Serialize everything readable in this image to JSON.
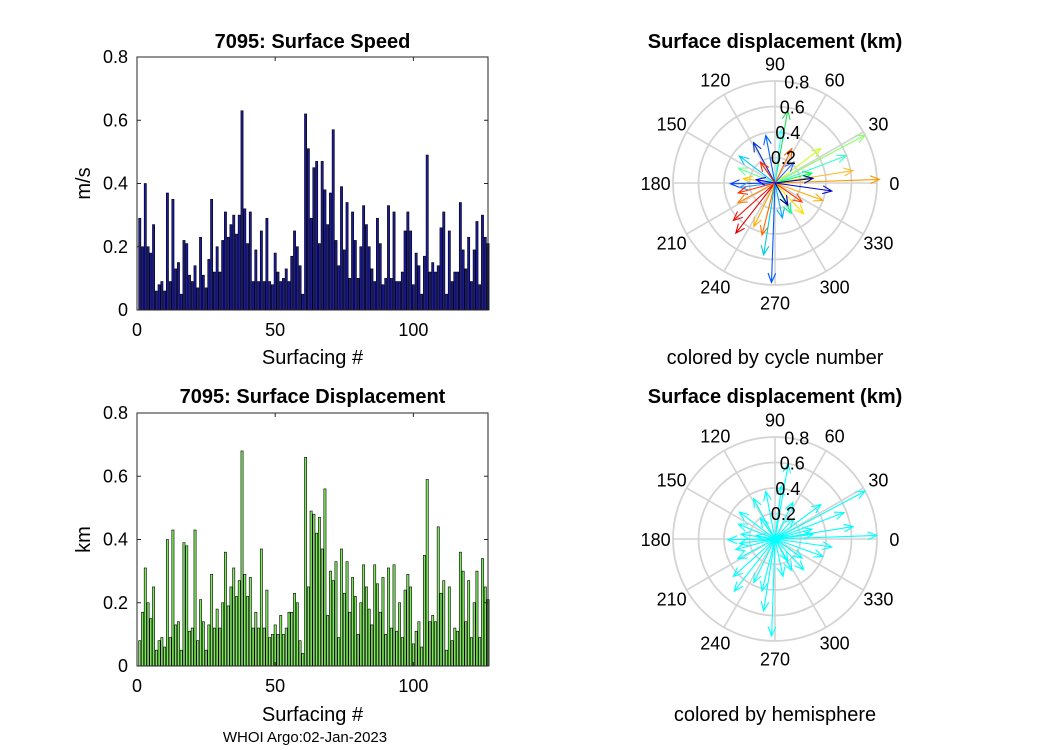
{
  "footer_text": "WHOI Argo:02-Jan-2023",
  "chart_data": [
    {
      "type": "bar",
      "title": "7095: Surface Speed",
      "xlabel": "Surfacing #",
      "ylabel": "m/s",
      "xlim": [
        0,
        127
      ],
      "ylim": [
        0,
        0.8
      ],
      "xticks": [
        0,
        50,
        100
      ],
      "yticks": [
        0,
        0.2,
        0.4,
        0.6,
        0.8
      ],
      "xtick_labels": [
        "0",
        "50",
        "100"
      ],
      "ytick_labels": [
        "0",
        "0.2",
        "0.4",
        "0.6",
        "0.8"
      ],
      "bar_fill": "#1b1b9c",
      "bar_edge": "#000000",
      "values": [
        0.29,
        0.2,
        0.4,
        0.2,
        0.18,
        0.27,
        0.06,
        0.08,
        0.09,
        0.06,
        0.37,
        0.09,
        0.35,
        0.13,
        0.15,
        0.05,
        0.22,
        0.21,
        0.11,
        0.09,
        0.14,
        0.07,
        0.23,
        0.11,
        0.07,
        0.16,
        0.35,
        0.12,
        0.2,
        0.12,
        0.22,
        0.31,
        0.23,
        0.27,
        0.3,
        0.24,
        0.3,
        0.63,
        0.32,
        0.21,
        0.31,
        0.09,
        0.19,
        0.09,
        0.25,
        0.09,
        0.29,
        0.09,
        0.08,
        0.18,
        0.12,
        0.09,
        0.1,
        0.13,
        0.09,
        0.17,
        0.25,
        0.2,
        0.14,
        0.05,
        0.62,
        0.51,
        0.29,
        0.45,
        0.47,
        0.21,
        0.47,
        0.38,
        0.27,
        0.37,
        0.57,
        0.22,
        0.14,
        0.39,
        0.19,
        0.34,
        0.1,
        0.31,
        0.22,
        0.1,
        0.2,
        0.33,
        0.27,
        0.2,
        0.13,
        0.09,
        0.29,
        0.21,
        0.08,
        0.1,
        0.33,
        0.1,
        0.31,
        0.09,
        0.09,
        0.12,
        0.25,
        0.31,
        0.25,
        0.08,
        0.18,
        0.14,
        0.05,
        0.17,
        0.49,
        0.12,
        0.15,
        0.12,
        0.14,
        0.26,
        0.31,
        0.05,
        0.25,
        0.09,
        0.12,
        0.12,
        0.34,
        0.19,
        0.13,
        0.23,
        0.09,
        0.19,
        0.28,
        0.08,
        0.3,
        0.23,
        0.21
      ]
    },
    {
      "type": "bar",
      "title": "7095: Surface Displacement",
      "xlabel": "Surfacing #",
      "ylabel": "km",
      "xlim": [
        0,
        127
      ],
      "ylim": [
        0,
        0.8
      ],
      "xticks": [
        0,
        50,
        100
      ],
      "yticks": [
        0,
        0.2,
        0.4,
        0.6,
        0.8
      ],
      "xtick_labels": [
        "0",
        "50",
        "100"
      ],
      "ytick_labels": [
        "0",
        "0.2",
        "0.4",
        "0.6",
        "0.8"
      ],
      "bar_fill": "#7ee85e",
      "bar_edge": "#000000",
      "values": [
        0.08,
        0.17,
        0.31,
        0.2,
        0.15,
        0.25,
        0.05,
        0.08,
        0.09,
        0.06,
        0.4,
        0.09,
        0.43,
        0.13,
        0.14,
        0.05,
        0.39,
        0.38,
        0.11,
        0.12,
        0.43,
        0.08,
        0.21,
        0.14,
        0.05,
        0.13,
        0.29,
        0.12,
        0.18,
        0.12,
        0.2,
        0.36,
        0.19,
        0.25,
        0.31,
        0.22,
        0.27,
        0.68,
        0.29,
        0.22,
        0.28,
        0.12,
        0.17,
        0.12,
        0.37,
        0.12,
        0.24,
        0.09,
        0.1,
        0.13,
        0.1,
        0.16,
        0.1,
        0.12,
        0.17,
        0.17,
        0.23,
        0.2,
        0.08,
        0.04,
        0.66,
        0.25,
        0.49,
        0.48,
        0.42,
        0.47,
        0.37,
        0.56,
        0.16,
        0.3,
        0.27,
        0.33,
        0.09,
        0.37,
        0.23,
        0.33,
        0.17,
        0.28,
        0.22,
        0.1,
        0.2,
        0.32,
        0.25,
        0.18,
        0.13,
        0.32,
        0.26,
        0.17,
        0.28,
        0.1,
        0.31,
        0.12,
        0.32,
        0.11,
        0.2,
        0.09,
        0.24,
        0.29,
        0.25,
        0.07,
        0.11,
        0.14,
        0.06,
        0.35,
        0.59,
        0.14,
        0.16,
        0.14,
        0.44,
        0.23,
        0.27,
        0.05,
        0.25,
        0.08,
        0.12,
        0.11,
        0.36,
        0.3,
        0.14,
        0.27,
        0.09,
        0.2,
        0.3,
        0.09,
        0.34,
        0.25,
        0.21
      ]
    },
    {
      "type": "polar",
      "subtype": "compass",
      "title": "Surface displacement (km)",
      "caption": "colored by cycle number",
      "rlim": [
        0,
        0.8
      ],
      "rticks": [
        0.2,
        0.4,
        0.6,
        0.8
      ],
      "rtick_labels": [
        "0.2",
        "0.4",
        "0.6",
        "0.8"
      ],
      "angle_ticks": [
        0,
        30,
        60,
        90,
        120,
        150,
        180,
        210,
        240,
        270,
        300,
        330
      ],
      "angle_labels": [
        "0",
        "30",
        "60",
        "90",
        "120",
        "150",
        "180",
        "210",
        "240",
        "270",
        "300",
        "330"
      ],
      "arrows": [
        {
          "angle": 2,
          "r": 0.82,
          "color": "#ff9900"
        },
        {
          "angle": 9,
          "r": 0.62,
          "color": "#ffbb33"
        },
        {
          "angle": 28,
          "r": 0.8,
          "color": "#88ff66"
        },
        {
          "angle": 21,
          "r": 0.6,
          "color": "#33ffcc"
        },
        {
          "angle": 37,
          "r": 0.45,
          "color": "#ccff33"
        },
        {
          "angle": 80,
          "r": 0.58,
          "color": "#22dd55"
        },
        {
          "angle": 83,
          "r": 0.42,
          "color": "#33ffff"
        },
        {
          "angle": 64,
          "r": 0.3,
          "color": "#ff6600"
        },
        {
          "angle": 101,
          "r": 0.38,
          "color": "#0066ff"
        },
        {
          "angle": 118,
          "r": 0.36,
          "color": "#0033cc"
        },
        {
          "angle": 143,
          "r": 0.35,
          "color": "#00ccff"
        },
        {
          "angle": 158,
          "r": 0.31,
          "color": "#66ff99"
        },
        {
          "angle": 172,
          "r": 0.25,
          "color": "#ffcc00"
        },
        {
          "angle": 181,
          "r": 0.35,
          "color": "#0044ff"
        },
        {
          "angle": 187,
          "r": 0.28,
          "color": "#3399ff"
        },
        {
          "angle": 195,
          "r": 0.3,
          "color": "#ff3300"
        },
        {
          "angle": 208,
          "r": 0.33,
          "color": "#ff8800"
        },
        {
          "angle": 222,
          "r": 0.44,
          "color": "#ee1111"
        },
        {
          "angle": 232,
          "r": 0.5,
          "color": "#dd0000"
        },
        {
          "angle": 244,
          "r": 0.38,
          "color": "#ffaa00"
        },
        {
          "angle": 256,
          "r": 0.42,
          "color": "#ff6600"
        },
        {
          "angle": 261,
          "r": 0.57,
          "color": "#00ccdd"
        },
        {
          "angle": 268,
          "r": 0.78,
          "color": "#0055ff"
        },
        {
          "angle": 282,
          "r": 0.28,
          "color": "#00aaff"
        },
        {
          "angle": 298,
          "r": 0.27,
          "color": "#00ff88"
        },
        {
          "angle": 313,
          "r": 0.33,
          "color": "#ffdd00"
        },
        {
          "angle": 325,
          "r": 0.26,
          "color": "#ff4400"
        },
        {
          "angle": 340,
          "r": 0.4,
          "color": "#ffaa00"
        },
        {
          "angle": 352,
          "r": 0.45,
          "color": "#0000cc"
        },
        {
          "angle": 15,
          "r": 0.3,
          "color": "#00ff44"
        },
        {
          "angle": 48,
          "r": 0.22,
          "color": "#3366ff"
        },
        {
          "angle": 125,
          "r": 0.2,
          "color": "#ff2200"
        },
        {
          "angle": 170,
          "r": 0.15,
          "color": "#0000ff"
        },
        {
          "angle": 300,
          "r": 0.2,
          "color": "#000099"
        },
        {
          "angle": 7,
          "r": 0.3,
          "color": "#000088"
        }
      ]
    },
    {
      "type": "polar",
      "subtype": "compass",
      "title": "Surface displacement (km)",
      "caption": "colored by hemisphere",
      "rlim": [
        0,
        0.8
      ],
      "rticks": [
        0.2,
        0.4,
        0.6,
        0.8
      ],
      "rtick_labels": [
        "0.2",
        "0.4",
        "0.6",
        "0.8"
      ],
      "angle_ticks": [
        0,
        30,
        60,
        90,
        120,
        150,
        180,
        210,
        240,
        270,
        300,
        330
      ],
      "angle_labels": [
        "0",
        "30",
        "60",
        "90",
        "120",
        "150",
        "180",
        "210",
        "240",
        "270",
        "300",
        "330"
      ],
      "arrow_color": "#00ffff",
      "arrows": [
        {
          "angle": 2,
          "r": 0.8
        },
        {
          "angle": 9,
          "r": 0.62
        },
        {
          "angle": 28,
          "r": 0.8
        },
        {
          "angle": 21,
          "r": 0.58
        },
        {
          "angle": 37,
          "r": 0.45
        },
        {
          "angle": 80,
          "r": 0.6
        },
        {
          "angle": 83,
          "r": 0.42
        },
        {
          "angle": 64,
          "r": 0.32
        },
        {
          "angle": 101,
          "r": 0.38
        },
        {
          "angle": 118,
          "r": 0.36
        },
        {
          "angle": 143,
          "r": 0.35
        },
        {
          "angle": 158,
          "r": 0.31
        },
        {
          "angle": 172,
          "r": 0.27
        },
        {
          "angle": 181,
          "r": 0.37
        },
        {
          "angle": 187,
          "r": 0.28
        },
        {
          "angle": 195,
          "r": 0.32
        },
        {
          "angle": 208,
          "r": 0.33
        },
        {
          "angle": 222,
          "r": 0.44
        },
        {
          "angle": 232,
          "r": 0.52
        },
        {
          "angle": 244,
          "r": 0.38
        },
        {
          "angle": 256,
          "r": 0.42
        },
        {
          "angle": 261,
          "r": 0.57
        },
        {
          "angle": 268,
          "r": 0.76
        },
        {
          "angle": 282,
          "r": 0.3
        },
        {
          "angle": 298,
          "r": 0.28
        },
        {
          "angle": 313,
          "r": 0.33
        },
        {
          "angle": 325,
          "r": 0.26
        },
        {
          "angle": 340,
          "r": 0.4
        },
        {
          "angle": 352,
          "r": 0.45
        },
        {
          "angle": 15,
          "r": 0.3
        },
        {
          "angle": 48,
          "r": 0.22
        },
        {
          "angle": 125,
          "r": 0.2
        },
        {
          "angle": 170,
          "r": 0.15
        },
        {
          "angle": 300,
          "r": 0.2
        },
        {
          "angle": 7,
          "r": 0.3
        }
      ]
    }
  ]
}
